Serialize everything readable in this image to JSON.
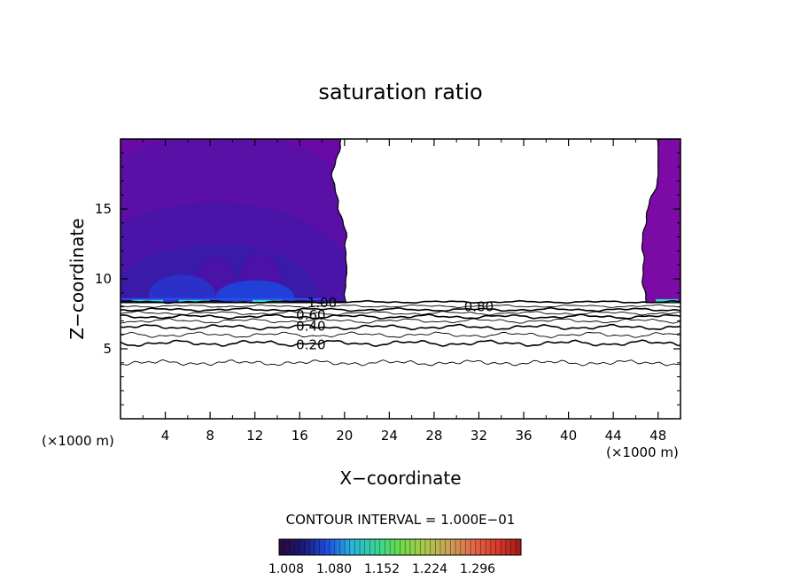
{
  "chart_data": {
    "type": "contour",
    "title": "saturation ratio",
    "xlabel": "X−coordinate",
    "ylabel": "Z−coordinate",
    "x_unit_left": "(×1000 m)",
    "x_unit_right": "(×1000 m)",
    "xlim": [
      0,
      50
    ],
    "ylim": [
      0,
      20
    ],
    "x_ticks": [
      4,
      8,
      12,
      16,
      20,
      24,
      28,
      32,
      36,
      40,
      44,
      48
    ],
    "y_ticks": [
      5,
      10,
      15
    ],
    "contour_interval_text": "CONTOUR INTERVAL = 1.000E−01",
    "contour_labels": [
      {
        "text": "1.00",
        "x": 18.0,
        "z": 8.3
      },
      {
        "text": "0.80",
        "x": 32.0,
        "z": 8.0
      },
      {
        "text": "0.60",
        "x": 17.0,
        "z": 7.4
      },
      {
        "text": "0.40",
        "x": 17.0,
        "z": 6.6
      },
      {
        "text": "0.20",
        "x": 17.0,
        "z": 5.3
      }
    ],
    "contour_lines": [
      {
        "level": 1.0,
        "z": 8.35,
        "bold": true
      },
      {
        "level": 0.9,
        "z": 8.05,
        "bold": false
      },
      {
        "level": 0.8,
        "z": 7.8,
        "bold": true
      },
      {
        "level": 0.7,
        "z": 7.55,
        "bold": false
      },
      {
        "level": 0.6,
        "z": 7.3,
        "bold": true
      },
      {
        "level": 0.5,
        "z": 7.0,
        "bold": false
      },
      {
        "level": 0.4,
        "z": 6.55,
        "bold": true
      },
      {
        "level": 0.3,
        "z": 6.0,
        "bold": false
      },
      {
        "level": 0.2,
        "z": 5.4,
        "bold": true
      },
      {
        "level": 0.1,
        "z": 4.0,
        "bold": false
      }
    ],
    "supersaturated_regions": [
      {
        "name": "left",
        "x_from": 0,
        "x_to_min": 18.7,
        "x_to_max": 20.2,
        "z_from": 8.3,
        "z_to": 20
      },
      {
        "name": "right",
        "x_from_min": 46.5,
        "x_from_max": 48.0,
        "x_to": 50,
        "z_from": 8.3,
        "z_to": 20
      }
    ],
    "colorbar": {
      "tick_labels": [
        "1.008",
        "1.080",
        "1.152",
        "1.224",
        "1.296"
      ],
      "colors": [
        "#2a0a3a",
        "#1a1a7a",
        "#1f4fe0",
        "#2ab3d8",
        "#37d39a",
        "#6adb4b",
        "#a9c94c",
        "#c9a25a",
        "#e06a48",
        "#d93a2a",
        "#a01a1a"
      ]
    },
    "colors": {
      "field_base": "#7c0aa6",
      "field_mid": "#6a0aa6",
      "field_deep": "#4a14a8",
      "field_core": "#3a1aa8",
      "edge_cyan": "#2fe0d0"
    }
  }
}
